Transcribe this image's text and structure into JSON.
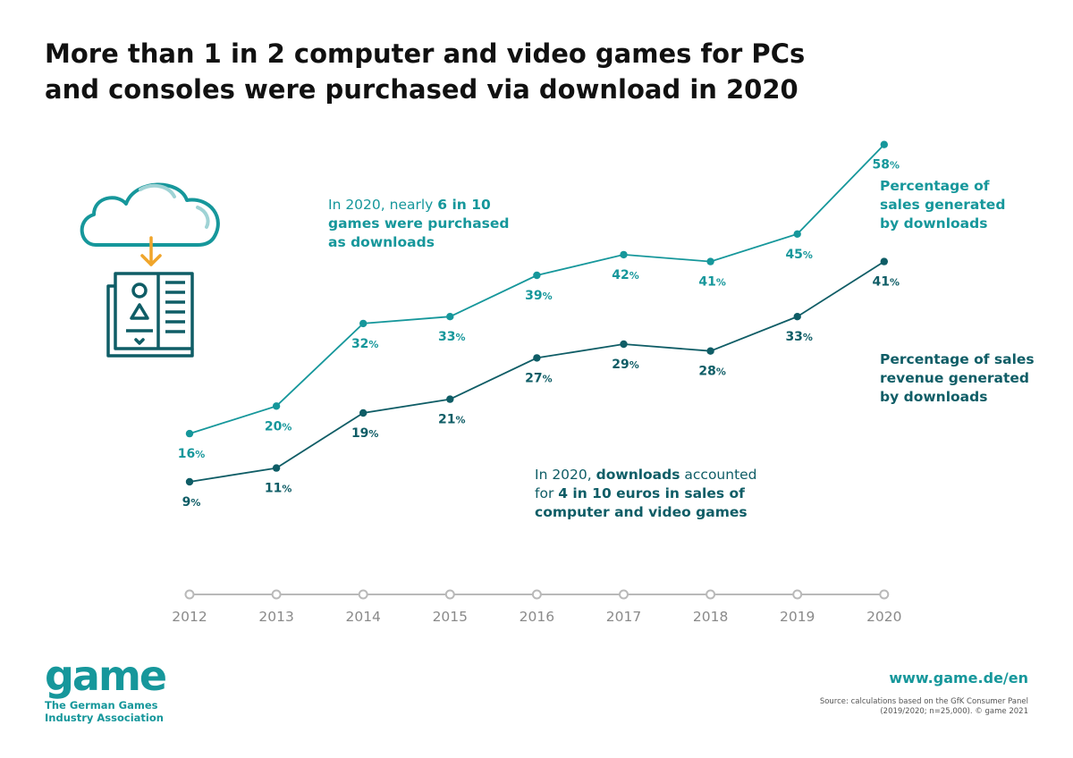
{
  "title": {
    "line1": "More than 1 in 2 computer and video games for PCs",
    "line2": "and consoles were purchased via download in 2020"
  },
  "annotations": {
    "top": {
      "l1_a": "In 2020, nearly ",
      "l1_b": "6 in 10",
      "l2": "games were purchased",
      "l3": "as downloads"
    },
    "bottom": {
      "l1_a": "In 2020, ",
      "l1_b": "downloads",
      "l1_c": " accounted",
      "l2_a": "for ",
      "l2_b": "4 in 10 euros in sales of",
      "l3": "computer and video games"
    }
  },
  "series_labels": {
    "sales": [
      "Percentage of",
      "sales generated",
      "by downloads"
    ],
    "revenue": [
      "Percentage of sales",
      "revenue generated",
      "by downloads"
    ]
  },
  "colors": {
    "sales": "#16979b",
    "revenue": "#0f5d66",
    "axis": "#b9b9b9",
    "axis_text": "#8a8a8a",
    "icon_orange": "#f0a52a"
  },
  "illustration": {
    "icons": [
      "cloud-icon",
      "download-arrow-icon",
      "game-box-icon"
    ]
  },
  "footer": {
    "logo_word": "game",
    "logo_tagline": [
      "The German Games",
      "Industry Association"
    ],
    "url": "www.game.de/en",
    "source": [
      "Source: calculations based on the GfK Consumer Panel",
      "(2019/2020; n=25,000). © game 2021"
    ]
  },
  "chart_data": {
    "type": "line",
    "x": [
      "2012",
      "2013",
      "2014",
      "2015",
      "2016",
      "2017",
      "2018",
      "2019",
      "2020"
    ],
    "value_suffix": "%",
    "ylim": [
      0,
      60
    ],
    "grid": false,
    "legend": "right (labels at line ends)",
    "series": [
      {
        "name": "Percentage of sales generated by downloads",
        "values": [
          16,
          20,
          32,
          33,
          39,
          42,
          41,
          45,
          58
        ],
        "color": "#16979b"
      },
      {
        "name": "Percentage of sales revenue generated by downloads",
        "values": [
          9,
          11,
          19,
          21,
          27,
          29,
          28,
          33,
          41
        ],
        "color": "#0f5d66"
      }
    ]
  }
}
